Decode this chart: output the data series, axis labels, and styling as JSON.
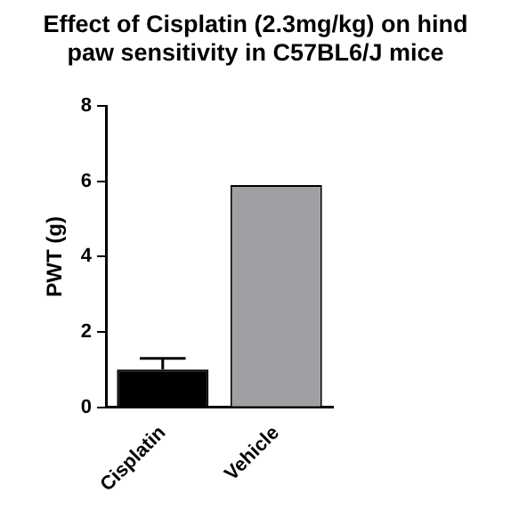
{
  "chart_data": {
    "type": "bar",
    "title": "Effect of Cisplatin (2.3mg/kg) on hind paw sensitivity in C57BL6/J mice",
    "ylabel": "PWT (g)",
    "categories": [
      "Cisplatin",
      "Vehicle"
    ],
    "values": [
      1.0,
      5.9
    ],
    "colors": [
      "#000000",
      "#a0a0a4"
    ],
    "errors": [
      [
        1.0,
        1.3
      ],
      null
    ],
    "ylim": [
      0,
      8
    ],
    "yticks": [
      0,
      2,
      4,
      6,
      8
    ],
    "grid": false,
    "legend": false
  }
}
